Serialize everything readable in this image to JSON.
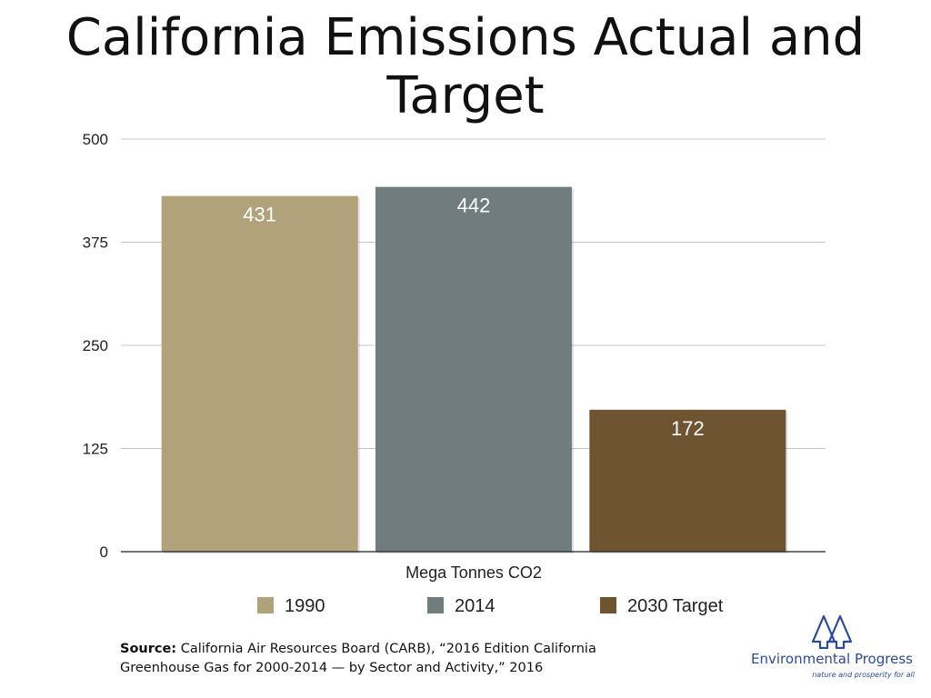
{
  "chart_data": {
    "type": "bar",
    "title": "California Emissions Actual and Target",
    "xlabel": "Mega Tonnes CO2",
    "ylabel": "",
    "ylim": [
      0,
      500
    ],
    "yticks": [
      0,
      125,
      250,
      375,
      500
    ],
    "grid": true,
    "legend_position": "bottom",
    "series": [
      {
        "name": "1990",
        "value": 431,
        "label": "431",
        "color": "#b1a27a"
      },
      {
        "name": "2014",
        "value": 442,
        "label": "442",
        "color": "#717d7c"
      },
      {
        "name": "2030 Target",
        "value": 172,
        "label": "172",
        "color": "#6e5431"
      }
    ]
  },
  "source": {
    "prefix": "Source:",
    "text": "California Air Resources Board (CARB), “2016 Edition California Greenhouse Gas for 2000-2014 — by Sector and Activity,” 2016"
  },
  "brand": {
    "name": "Environmental Progress",
    "tagline": "nature and prosperity for all",
    "logo_icon": "tree-logo-icon",
    "color": "#2b4a9c"
  }
}
